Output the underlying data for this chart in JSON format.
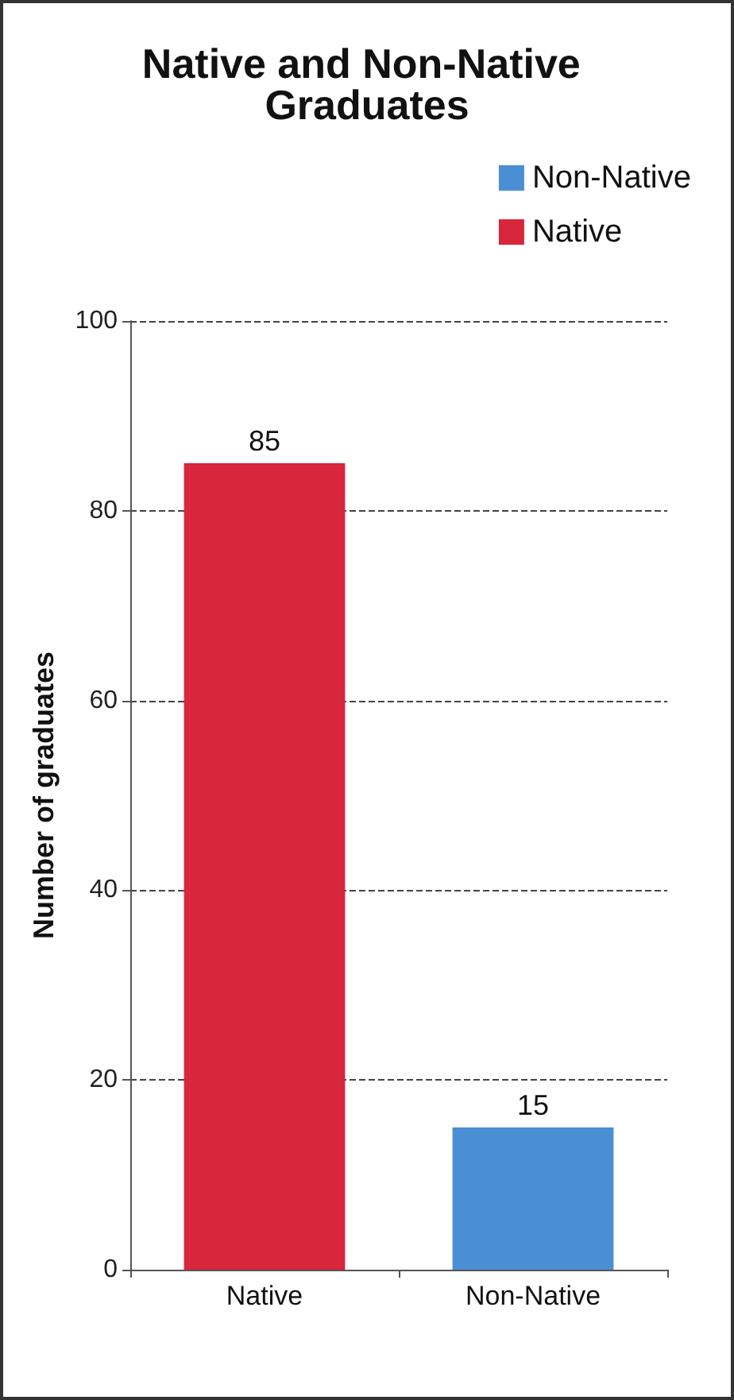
{
  "chart_data": {
    "type": "bar",
    "title": "Native and Non-Native Graduates",
    "ylabel": "Number of graduates",
    "categories": [
      "Native",
      "Non-Native"
    ],
    "series": [
      {
        "name": "Non-Native",
        "color": "#4a8fd4",
        "values": [
          null,
          15
        ]
      },
      {
        "name": "Native",
        "color": "#d8263c",
        "values": [
          85,
          null
        ]
      }
    ],
    "ylim": [
      0,
      100
    ],
    "yticks": [
      0,
      20,
      40,
      60,
      80,
      100
    ],
    "grid": "y",
    "legend": "top right",
    "data_labels": true
  }
}
